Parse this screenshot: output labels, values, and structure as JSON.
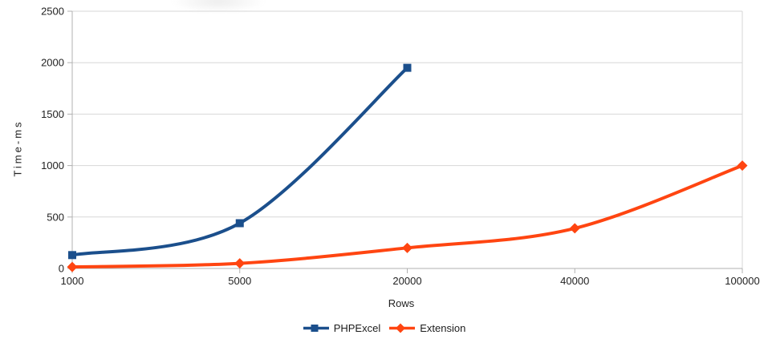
{
  "chart_data": {
    "type": "line",
    "title": "",
    "xlabel": "Rows",
    "ylabel": "Time-ms",
    "categories": [
      "1000",
      "5000",
      "20000",
      "40000",
      "100000"
    ],
    "y_ticks": [
      0,
      500,
      1000,
      1500,
      2000,
      2500
    ],
    "ylim": [
      0,
      2500
    ],
    "grid": "horizontal-only",
    "line_smoothing": "cubic-spline",
    "legend_position": "bottom-center",
    "series": [
      {
        "name": "PHPExcel",
        "color": "#1b4f8c",
        "marker": "square",
        "values": [
          130,
          440,
          1950
        ]
      },
      {
        "name": "Extension",
        "color": "#ff4511",
        "marker": "diamond",
        "values": [
          15,
          50,
          200,
          390,
          1000
        ]
      }
    ],
    "colors": {
      "background": "#ffffff",
      "gridline": "#d7d7d7",
      "axis": "#b0b0b0",
      "label_text": "#222222"
    }
  }
}
